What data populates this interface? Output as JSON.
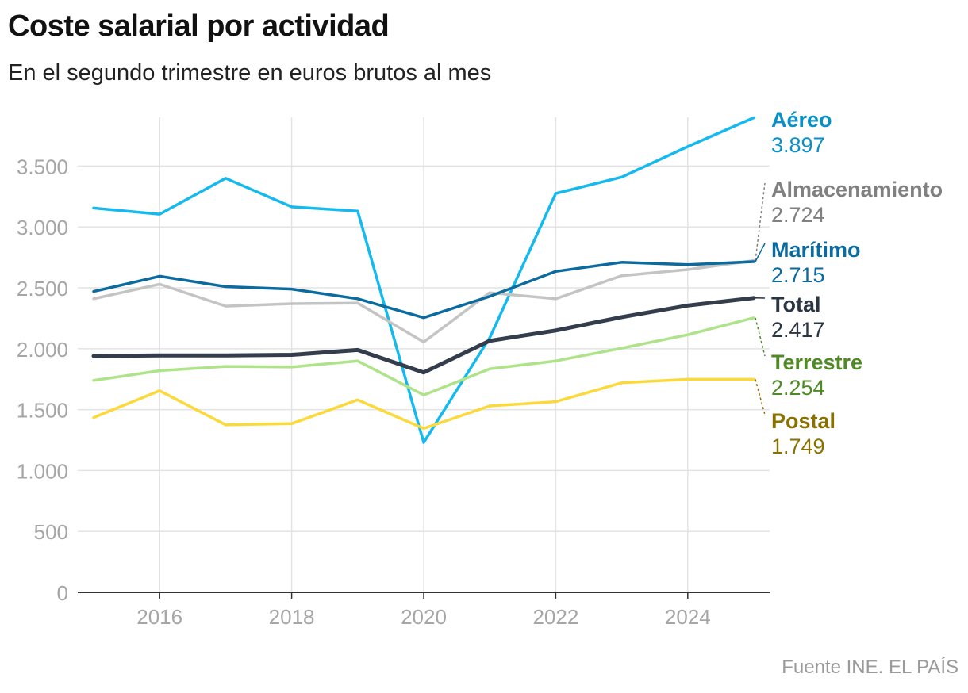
{
  "title": "Coste salarial por actividad",
  "subtitle": "En el segundo trimestre en euros brutos al mes",
  "source": "Fuente INE. EL PAÍS",
  "chart_data": {
    "type": "line",
    "title": "Coste salarial por actividad",
    "subtitle": "En el segundo trimestre en euros brutos al mes",
    "xlabel": "",
    "ylabel": "",
    "x": [
      2015,
      2016,
      2017,
      2018,
      2019,
      2020,
      2021,
      2022,
      2023,
      2024,
      2025
    ],
    "xticks": [
      2016,
      2018,
      2020,
      2022,
      2024
    ],
    "xtick_labels": [
      "2016",
      "2018",
      "2020",
      "2022",
      "2024"
    ],
    "yticks": [
      0,
      500,
      1000,
      1500,
      2000,
      2500,
      3000,
      3500
    ],
    "ytick_labels": [
      "0",
      "500",
      "1.000",
      "1.500",
      "2.000",
      "2.500",
      "3.000",
      "3.500"
    ],
    "xlim": [
      2015,
      2025
    ],
    "ylim": [
      0,
      3900
    ],
    "grid": true,
    "legend": "direct labels at right end of lines",
    "series": [
      {
        "name": "Aéreo",
        "value_label": "3.897",
        "color": "#14b9ee",
        "label_color": "#0a8fc7",
        "values": [
          3155,
          3105,
          3400,
          3165,
          3130,
          1230,
          2090,
          3275,
          3410,
          3660,
          3897
        ]
      },
      {
        "name": "Almacenamiento",
        "value_label": "2.724",
        "color": "#c4c4c4",
        "label_color": "#808080",
        "values": [
          2410,
          2530,
          2350,
          2370,
          2375,
          2055,
          2460,
          2410,
          2600,
          2650,
          2724
        ]
      },
      {
        "name": "Marítimo",
        "value_label": "2.715",
        "color": "#0b6a9e",
        "label_color": "#0b6a9e",
        "values": [
          2470,
          2595,
          2510,
          2490,
          2410,
          2255,
          2430,
          2635,
          2710,
          2690,
          2715
        ]
      },
      {
        "name": "Total",
        "value_label": "2.417",
        "color": "#333d4b",
        "label_color": "#2b3544",
        "values": [
          1940,
          1945,
          1945,
          1950,
          1990,
          1805,
          2065,
          2150,
          2260,
          2355,
          2417
        ]
      },
      {
        "name": "Terrestre",
        "value_label": "2.254",
        "color": "#aee389",
        "label_color": "#4f8a24",
        "values": [
          1740,
          1820,
          1855,
          1850,
          1900,
          1620,
          1835,
          1900,
          2005,
          2115,
          2254
        ]
      },
      {
        "name": "Postal",
        "value_label": "1.749",
        "color": "#fbd93a",
        "label_color": "#8a7000",
        "values": [
          1435,
          1655,
          1375,
          1385,
          1580,
          1345,
          1530,
          1565,
          1720,
          1749,
          1749
        ]
      }
    ]
  }
}
